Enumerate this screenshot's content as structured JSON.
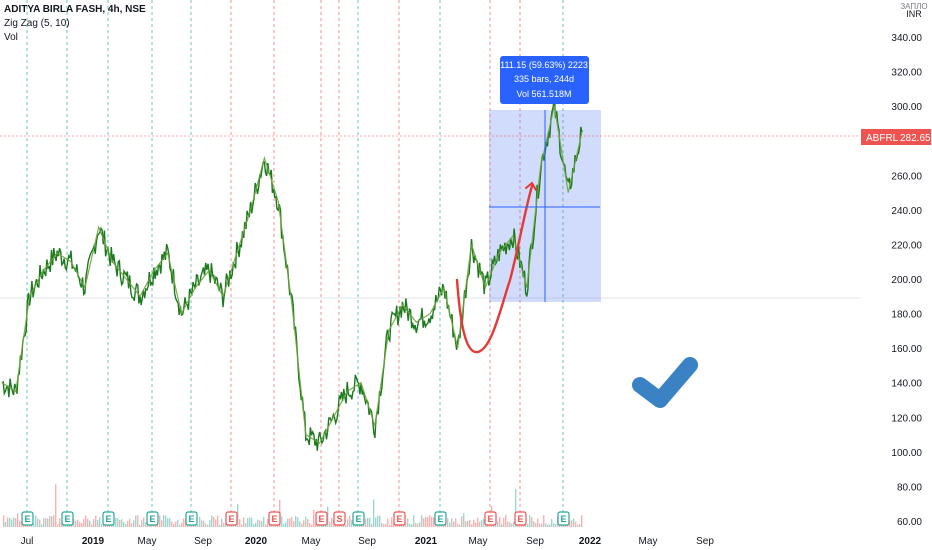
{
  "header": {
    "title": "ADITYA BIRLA FASH, 4h, NSE",
    "indicator": "Zig Zag (5, 10)",
    "volume": "Vol"
  },
  "currency": {
    "line1": "ЗАПЛО",
    "line2": "INR"
  },
  "price_label": {
    "symbol": "ABFRL",
    "value": "282.65"
  },
  "measure": {
    "line1": "111.15 (59.63%) 2223",
    "line2": "335 bars, 244d",
    "line3": "Vol 561.518M"
  },
  "colors": {
    "price_line": "#1b7a1f",
    "zigzag": "#6fa33c",
    "measure_box": "#5a7ef0",
    "curve": "#e53935",
    "check": "#3b82c4",
    "earnings": "#26a69a",
    "dividend": "#ef5350"
  },
  "chart_data": {
    "type": "line",
    "title": "ADITYA BIRLA FASH, 4h, NSE",
    "ylim": [
      58,
      352
    ],
    "yticks": [
      "340.00",
      "320.00",
      "300.00",
      "280.00",
      "260.00",
      "240.00",
      "220.00",
      "200.00",
      "180.00",
      "160.00",
      "140.00",
      "120.00",
      "100.00",
      "80.00",
      "60.00"
    ],
    "xticks": [
      "Jul",
      "2019",
      "May",
      "Sep",
      "2020",
      "May",
      "Sep",
      "2021",
      "May",
      "Sep",
      "2022",
      "May",
      "Sep"
    ],
    "series": [
      {
        "x": [
          "2018-07",
          "2018-08",
          "2018-09",
          "2018-10",
          "2018-11",
          "2018-12",
          "2019-01",
          "2019-02",
          "2019-03",
          "2019-04",
          "2019-05",
          "2019-06",
          "2019-07",
          "2019-08",
          "2019-09",
          "2019-10",
          "2019-11",
          "2019-12",
          "2020-01",
          "2020-01",
          "2020-02",
          "2020-03",
          "2020-04",
          "2020-05",
          "2020-06",
          "2020-07",
          "2020-08",
          "2020-09",
          "2020-10",
          "2020-11",
          "2020-12",
          "2021-01",
          "2021-02",
          "2021-03",
          "2021-04",
          "2021-05",
          "2021-06",
          "2021-07",
          "2021-08",
          "2021-09",
          "2021-10",
          "2021-11",
          "2021-12"
        ],
        "values": [
          140,
          135,
          190,
          205,
          215,
          210,
          195,
          230,
          210,
          200,
          190,
          205,
          215,
          180,
          195,
          205,
          190,
          215,
          240,
          270,
          245,
          185,
          110,
          105,
          120,
          135,
          140,
          115,
          170,
          185,
          175,
          180,
          195,
          160,
          220,
          195,
          215,
          225,
          195,
          265,
          300,
          250,
          285
        ]
      }
    ],
    "events": [
      {
        "type": "E",
        "label": "E"
      },
      {
        "type": "E",
        "label": "E"
      },
      {
        "type": "E",
        "label": "E"
      },
      {
        "type": "E",
        "label": "E"
      },
      {
        "type": "E",
        "label": "E"
      },
      {
        "type": "D",
        "label": "E"
      },
      {
        "type": "D",
        "label": "E"
      },
      {
        "type": "D",
        "label": "E"
      },
      {
        "type": "D",
        "label": "S"
      },
      {
        "type": "E",
        "label": "E"
      },
      {
        "type": "D",
        "label": "E"
      },
      {
        "type": "E",
        "label": "E"
      },
      {
        "type": "D",
        "label": "E"
      },
      {
        "type": "D",
        "label": "E"
      },
      {
        "type": "E",
        "label": "E"
      }
    ]
  }
}
